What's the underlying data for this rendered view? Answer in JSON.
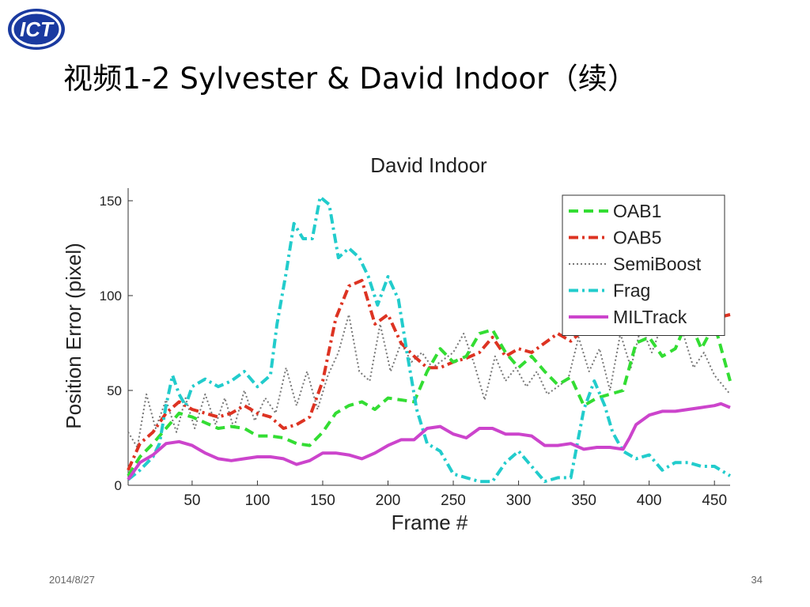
{
  "slide": {
    "title": "视频1-2   Sylvester & David Indoor（续）",
    "date": "2014/8/27",
    "page_number": "34",
    "logo_text": "ICT"
  },
  "colors": {
    "OAB1": "#33dd33",
    "OAB5": "#dd3322",
    "SemiBoost": "#777777",
    "Frag": "#22cccc",
    "MILTrack": "#cc44cc"
  },
  "chart_data": {
    "type": "line",
    "title": "David Indoor",
    "xlabel": "Frame #",
    "ylabel": "Position Error (pixel)",
    "xlim": [
      1,
      462
    ],
    "ylim": [
      0,
      155
    ],
    "xticks": [
      50,
      100,
      150,
      200,
      250,
      300,
      350,
      400,
      450
    ],
    "yticks": [
      0,
      50,
      100,
      150
    ],
    "grid": false,
    "legend_position": "top-right",
    "series": [
      {
        "name": "OAB1",
        "style": "dashed",
        "points": [
          [
            1,
            5
          ],
          [
            10,
            15
          ],
          [
            20,
            22
          ],
          [
            30,
            30
          ],
          [
            40,
            38
          ],
          [
            50,
            36
          ],
          [
            60,
            33
          ],
          [
            70,
            30
          ],
          [
            80,
            31
          ],
          [
            90,
            30
          ],
          [
            100,
            26
          ],
          [
            110,
            26
          ],
          [
            120,
            25
          ],
          [
            130,
            22
          ],
          [
            140,
            21
          ],
          [
            150,
            28
          ],
          [
            160,
            38
          ],
          [
            170,
            42
          ],
          [
            180,
            44
          ],
          [
            190,
            40
          ],
          [
            200,
            46
          ],
          [
            210,
            45
          ],
          [
            220,
            44
          ],
          [
            230,
            60
          ],
          [
            240,
            72
          ],
          [
            250,
            65
          ],
          [
            260,
            68
          ],
          [
            270,
            80
          ],
          [
            280,
            82
          ],
          [
            290,
            70
          ],
          [
            300,
            62
          ],
          [
            310,
            68
          ],
          [
            320,
            60
          ],
          [
            330,
            53
          ],
          [
            340,
            57
          ],
          [
            350,
            42
          ],
          [
            360,
            46
          ],
          [
            370,
            48
          ],
          [
            380,
            50
          ],
          [
            390,
            75
          ],
          [
            400,
            78
          ],
          [
            410,
            68
          ],
          [
            420,
            72
          ],
          [
            430,
            88
          ],
          [
            440,
            72
          ],
          [
            450,
            85
          ],
          [
            462,
            55
          ]
        ]
      },
      {
        "name": "OAB5",
        "style": "dash-dot",
        "points": [
          [
            1,
            8
          ],
          [
            10,
            22
          ],
          [
            20,
            28
          ],
          [
            30,
            38
          ],
          [
            40,
            44
          ],
          [
            50,
            40
          ],
          [
            60,
            38
          ],
          [
            70,
            36
          ],
          [
            80,
            38
          ],
          [
            90,
            42
          ],
          [
            100,
            38
          ],
          [
            110,
            36
          ],
          [
            120,
            30
          ],
          [
            130,
            32
          ],
          [
            140,
            36
          ],
          [
            150,
            55
          ],
          [
            160,
            88
          ],
          [
            170,
            105
          ],
          [
            180,
            108
          ],
          [
            190,
            85
          ],
          [
            200,
            90
          ],
          [
            210,
            75
          ],
          [
            220,
            68
          ],
          [
            230,
            62
          ],
          [
            240,
            62
          ],
          [
            250,
            65
          ],
          [
            260,
            67
          ],
          [
            270,
            70
          ],
          [
            280,
            78
          ],
          [
            290,
            68
          ],
          [
            300,
            72
          ],
          [
            310,
            70
          ],
          [
            320,
            75
          ],
          [
            330,
            80
          ],
          [
            340,
            76
          ],
          [
            350,
            82
          ],
          [
            360,
            80
          ],
          [
            370,
            84
          ],
          [
            380,
            85
          ],
          [
            390,
            88
          ],
          [
            400,
            86
          ],
          [
            410,
            84
          ],
          [
            420,
            86
          ],
          [
            430,
            88
          ],
          [
            440,
            86
          ],
          [
            450,
            88
          ],
          [
            462,
            90
          ]
        ]
      },
      {
        "name": "SemiBoost",
        "style": "dotted",
        "points": [
          [
            1,
            28
          ],
          [
            8,
            20
          ],
          [
            15,
            48
          ],
          [
            22,
            30
          ],
          [
            30,
            45
          ],
          [
            38,
            28
          ],
          [
            45,
            46
          ],
          [
            52,
            30
          ],
          [
            60,
            48
          ],
          [
            68,
            32
          ],
          [
            75,
            46
          ],
          [
            82,
            30
          ],
          [
            90,
            50
          ],
          [
            98,
            34
          ],
          [
            106,
            46
          ],
          [
            114,
            38
          ],
          [
            122,
            62
          ],
          [
            130,
            42
          ],
          [
            138,
            60
          ],
          [
            146,
            40
          ],
          [
            154,
            58
          ],
          [
            162,
            70
          ],
          [
            170,
            90
          ],
          [
            178,
            60
          ],
          [
            186,
            55
          ],
          [
            194,
            85
          ],
          [
            202,
            60
          ],
          [
            210,
            75
          ],
          [
            218,
            65
          ],
          [
            226,
            70
          ],
          [
            234,
            62
          ],
          [
            242,
            66
          ],
          [
            250,
            70
          ],
          [
            258,
            80
          ],
          [
            266,
            64
          ],
          [
            274,
            45
          ],
          [
            282,
            68
          ],
          [
            290,
            55
          ],
          [
            298,
            62
          ],
          [
            306,
            52
          ],
          [
            314,
            60
          ],
          [
            322,
            48
          ],
          [
            330,
            52
          ],
          [
            338,
            56
          ],
          [
            346,
            78
          ],
          [
            354,
            60
          ],
          [
            362,
            72
          ],
          [
            370,
            50
          ],
          [
            378,
            80
          ],
          [
            386,
            62
          ],
          [
            394,
            84
          ],
          [
            402,
            70
          ],
          [
            410,
            85
          ],
          [
            418,
            82
          ],
          [
            426,
            80
          ],
          [
            434,
            62
          ],
          [
            442,
            70
          ],
          [
            450,
            58
          ],
          [
            462,
            48
          ]
        ]
      },
      {
        "name": "Frag",
        "style": "dash-dot",
        "points": [
          [
            1,
            3
          ],
          [
            10,
            8
          ],
          [
            20,
            15
          ],
          [
            25,
            22
          ],
          [
            30,
            42
          ],
          [
            35,
            58
          ],
          [
            40,
            48
          ],
          [
            45,
            42
          ],
          [
            50,
            52
          ],
          [
            60,
            56
          ],
          [
            70,
            52
          ],
          [
            80,
            55
          ],
          [
            90,
            60
          ],
          [
            100,
            52
          ],
          [
            110,
            58
          ],
          [
            115,
            85
          ],
          [
            122,
            112
          ],
          [
            128,
            138
          ],
          [
            135,
            130
          ],
          [
            142,
            130
          ],
          [
            148,
            152
          ],
          [
            155,
            148
          ],
          [
            162,
            120
          ],
          [
            170,
            125
          ],
          [
            178,
            120
          ],
          [
            185,
            110
          ],
          [
            192,
            95
          ],
          [
            200,
            110
          ],
          [
            208,
            98
          ],
          [
            215,
            68
          ],
          [
            222,
            40
          ],
          [
            230,
            22
          ],
          [
            240,
            18
          ],
          [
            250,
            6
          ],
          [
            260,
            4
          ],
          [
            270,
            2
          ],
          [
            280,
            2
          ],
          [
            290,
            12
          ],
          [
            300,
            18
          ],
          [
            310,
            10
          ],
          [
            320,
            2
          ],
          [
            330,
            4
          ],
          [
            340,
            4
          ],
          [
            350,
            40
          ],
          [
            358,
            55
          ],
          [
            366,
            42
          ],
          [
            372,
            28
          ],
          [
            380,
            18
          ],
          [
            390,
            14
          ],
          [
            400,
            16
          ],
          [
            410,
            8
          ],
          [
            420,
            12
          ],
          [
            430,
            12
          ],
          [
            440,
            10
          ],
          [
            450,
            10
          ],
          [
            462,
            5
          ]
        ]
      },
      {
        "name": "MILTrack",
        "style": "solid",
        "points": [
          [
            1,
            3
          ],
          [
            10,
            12
          ],
          [
            20,
            16
          ],
          [
            30,
            22
          ],
          [
            40,
            23
          ],
          [
            50,
            21
          ],
          [
            60,
            17
          ],
          [
            70,
            14
          ],
          [
            80,
            13
          ],
          [
            90,
            14
          ],
          [
            100,
            15
          ],
          [
            110,
            15
          ],
          [
            120,
            14
          ],
          [
            130,
            11
          ],
          [
            140,
            13
          ],
          [
            150,
            17
          ],
          [
            160,
            17
          ],
          [
            170,
            16
          ],
          [
            180,
            14
          ],
          [
            190,
            17
          ],
          [
            200,
            21
          ],
          [
            210,
            24
          ],
          [
            220,
            24
          ],
          [
            230,
            30
          ],
          [
            240,
            31
          ],
          [
            250,
            27
          ],
          [
            260,
            25
          ],
          [
            270,
            30
          ],
          [
            280,
            30
          ],
          [
            290,
            27
          ],
          [
            300,
            27
          ],
          [
            310,
            26
          ],
          [
            320,
            21
          ],
          [
            330,
            21
          ],
          [
            340,
            22
          ],
          [
            350,
            19
          ],
          [
            360,
            20
          ],
          [
            370,
            20
          ],
          [
            380,
            19
          ],
          [
            385,
            25
          ],
          [
            390,
            32
          ],
          [
            400,
            37
          ],
          [
            410,
            39
          ],
          [
            420,
            39
          ],
          [
            430,
            40
          ],
          [
            440,
            41
          ],
          [
            450,
            42
          ],
          [
            455,
            43
          ],
          [
            462,
            41
          ]
        ]
      }
    ]
  }
}
